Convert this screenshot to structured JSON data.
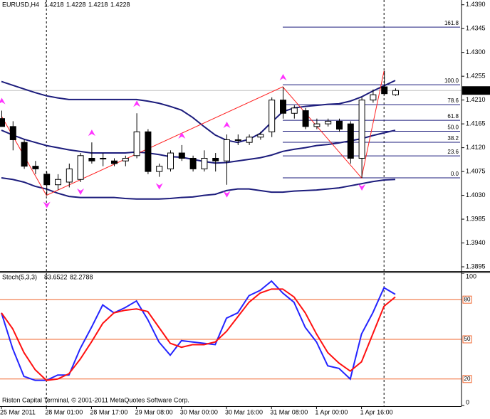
{
  "header": {
    "symbol": "EURUSD,H4",
    "quote": [
      1.4218,
      1.4228,
      1.4218,
      1.4228
    ]
  },
  "copyright": "Riston Capital Terminal, © 2001-2011 MetaQuotes Software Corp.",
  "chart_data": [
    {
      "type": "candlestick",
      "categories": [
        "25 Mar 2011",
        null,
        null,
        null,
        "28 Mar 01:00",
        null,
        null,
        null,
        "28 Mar 17:00",
        null,
        null,
        null,
        "29 Mar 08:00",
        null,
        null,
        null,
        "30 Mar 00:00",
        null,
        null,
        null,
        "30 Mar 16:00",
        null,
        null,
        null,
        "31 Mar 08:00",
        null,
        null,
        null,
        "1 Apr 00:00",
        null,
        null,
        null,
        "1 Apr 16:00",
        null,
        null,
        null
      ],
      "open": [
        1.4175,
        1.416,
        1.413,
        1.4085,
        1.407,
        1.405,
        1.4055,
        1.406,
        1.41,
        1.41,
        1.4095,
        1.4095,
        1.4105,
        1.415,
        1.4075,
        1.408,
        1.411,
        1.41,
        1.408,
        1.41,
        1.4095,
        1.4135,
        1.413,
        1.414,
        1.415,
        1.421,
        1.4185,
        1.419,
        1.416,
        1.4165,
        1.417,
        1.4165,
        1.41,
        1.421,
        1.4235,
        1.422
      ],
      "high": [
        1.419,
        1.417,
        1.4135,
        1.4095,
        1.4075,
        1.407,
        1.409,
        1.411,
        1.413,
        1.411,
        1.41,
        1.4105,
        1.4185,
        1.4155,
        1.409,
        1.4115,
        1.4125,
        1.4105,
        1.4115,
        1.411,
        1.4145,
        1.4145,
        1.4145,
        1.415,
        1.4215,
        1.4235,
        1.42,
        1.4195,
        1.4175,
        1.4175,
        1.4175,
        1.417,
        1.4215,
        1.423,
        1.4265,
        1.4232
      ],
      "low": [
        1.416,
        1.4115,
        1.408,
        1.407,
        1.403,
        1.404,
        1.4045,
        1.4055,
        1.409,
        1.4085,
        1.4085,
        1.4085,
        1.41,
        1.407,
        1.4065,
        1.4075,
        1.4095,
        1.4075,
        1.4075,
        1.4075,
        1.405,
        1.4125,
        1.4125,
        1.4135,
        1.414,
        1.4175,
        1.4175,
        1.4155,
        1.4155,
        1.416,
        1.415,
        1.409,
        1.4063,
        1.4205,
        1.422,
        1.4218
      ],
      "close": [
        1.416,
        1.4135,
        1.4085,
        1.408,
        1.405,
        1.406,
        1.408,
        1.4105,
        1.4095,
        1.41,
        1.409,
        1.41,
        1.415,
        1.4075,
        1.4085,
        1.411,
        1.41,
        1.408,
        1.41,
        1.4095,
        1.4135,
        1.4135,
        1.414,
        1.4145,
        1.421,
        1.4185,
        1.4195,
        1.416,
        1.4165,
        1.417,
        1.4155,
        1.41,
        1.421,
        1.422,
        1.4222,
        1.4228
      ],
      "up_color": "#ffffff",
      "down_color": "#000000",
      "ylim": [
        1.3887,
        1.4399
      ],
      "yticks": [
        {
          "value": 1.439,
          "label": "1.4390"
        },
        1.4345,
        {
          "value": 1.43,
          "label": "1.4300"
        },
        1.4255,
        {
          "value": 1.421,
          "label": "1.4210"
        },
        1.4165,
        {
          "value": 1.412,
          "label": "1.4120"
        },
        1.4075,
        {
          "value": 1.403,
          "label": "1.4030"
        },
        1.3985,
        {
          "value": 1.394,
          "label": "1.3940"
        },
        1.3895
      ],
      "last_price": 1.4228,
      "bands": {
        "color": "#1c1c7c",
        "series": [
          {
            "values": [
              1.4245,
              1.4238,
              1.4231,
              1.4224,
              1.4218,
              1.4214,
              1.4211,
              1.4211,
              1.4211,
              1.4211,
              1.4211,
              1.4211,
              1.4211,
              1.4208,
              1.4204,
              1.4198,
              1.4191,
              1.4177,
              1.416,
              1.4144,
              1.4134,
              1.413,
              1.4136,
              1.4147,
              1.4168,
              1.4188,
              1.4195,
              1.4198,
              1.42,
              1.4202,
              1.4203,
              1.4208,
              1.4216,
              1.4227,
              1.4237,
              1.4247
            ]
          },
          {
            "values": [
              1.4153,
              1.4144,
              1.4136,
              1.413,
              1.4124,
              1.412,
              1.4116,
              1.4113,
              1.411,
              1.411,
              1.411,
              1.411,
              1.4112,
              1.411,
              1.4107,
              1.4103,
              1.4102,
              1.4098,
              1.4094,
              1.4091,
              1.4092,
              1.4095,
              1.4098,
              1.4101,
              1.4106,
              1.4113,
              1.4117,
              1.412,
              1.4124,
              1.4126,
              1.4129,
              1.4133,
              1.4137,
              1.4143,
              1.4148,
              1.4153
            ]
          },
          {
            "values": [
              1.4063,
              1.406,
              1.4055,
              1.4047,
              1.4042,
              1.4034,
              1.4028,
              1.4026,
              1.4026,
              1.4026,
              1.4026,
              1.4024,
              1.4023,
              1.4023,
              1.4023,
              1.4024,
              1.4026,
              1.4027,
              1.403,
              1.4032,
              1.4039,
              1.4042,
              1.4042,
              1.4039,
              1.4036,
              1.4036,
              1.4038,
              1.4039,
              1.404,
              1.4042,
              1.4044,
              1.4048,
              1.4052,
              1.4056,
              1.4059,
              1.406
            ]
          }
        ]
      },
      "zigzag": {
        "color": "#ff2020",
        "index": [
          0,
          4,
          25,
          32,
          34
        ],
        "values": [
          1.418,
          1.403,
          1.4235,
          1.4063,
          1.4265
        ]
      },
      "fractals": {
        "color": "#ff33ff",
        "up": {
          "index": [
            0,
            8,
            12,
            16,
            20,
            25
          ],
          "values": [
            1.419,
            1.413,
            1.4185,
            1.4125,
            1.4145,
            1.4235
          ]
        },
        "down": {
          "index": [
            4,
            7,
            14,
            20,
            32
          ],
          "values": [
            1.403,
            1.4055,
            1.4065,
            1.405,
            1.4063
          ]
        }
      },
      "fib": {
        "color": "#1c1c7c",
        "start": 25,
        "low": 1.4063,
        "high": 1.4239,
        "levels": [
          161.8,
          {
            "value": 100,
            "label": "100.0"
          },
          78.6,
          61.8,
          {
            "value": 50,
            "label": "50.0"
          },
          38.2,
          23.6,
          {
            "value": 0,
            "label": "0.0"
          }
        ]
      },
      "vlines": [
        4,
        34
      ]
    },
    {
      "type": "stochastic",
      "title": "Stoch(5,3,3)",
      "readings": [
        83.6522,
        82.2788
      ],
      "ylim": [
        0,
        100
      ],
      "yticks": [
        0,
        100
      ],
      "levels": [
        80,
        50,
        20
      ],
      "level_color": "#f0642c",
      "series": [
        {
          "color": "#2424ff",
          "values": [
            70,
            43,
            22,
            19,
            19,
            23,
            23,
            43,
            59,
            76,
            70,
            74,
            79,
            65,
            48,
            38,
            49,
            48,
            47,
            46,
            66,
            70,
            83,
            87,
            94,
            85,
            78,
            59,
            48,
            30,
            28,
            20,
            54,
            70,
            89,
            84
          ]
        },
        {
          "color": "#ff1010",
          "values": [
            70,
            58,
            40,
            27,
            19,
            20,
            24,
            35,
            48,
            62,
            70,
            72,
            73,
            71,
            59,
            47,
            44,
            46,
            46,
            48,
            56,
            67,
            78,
            85,
            88,
            88,
            82,
            70,
            54,
            40,
            32,
            26,
            33,
            54,
            75,
            82
          ]
        }
      ]
    }
  ]
}
